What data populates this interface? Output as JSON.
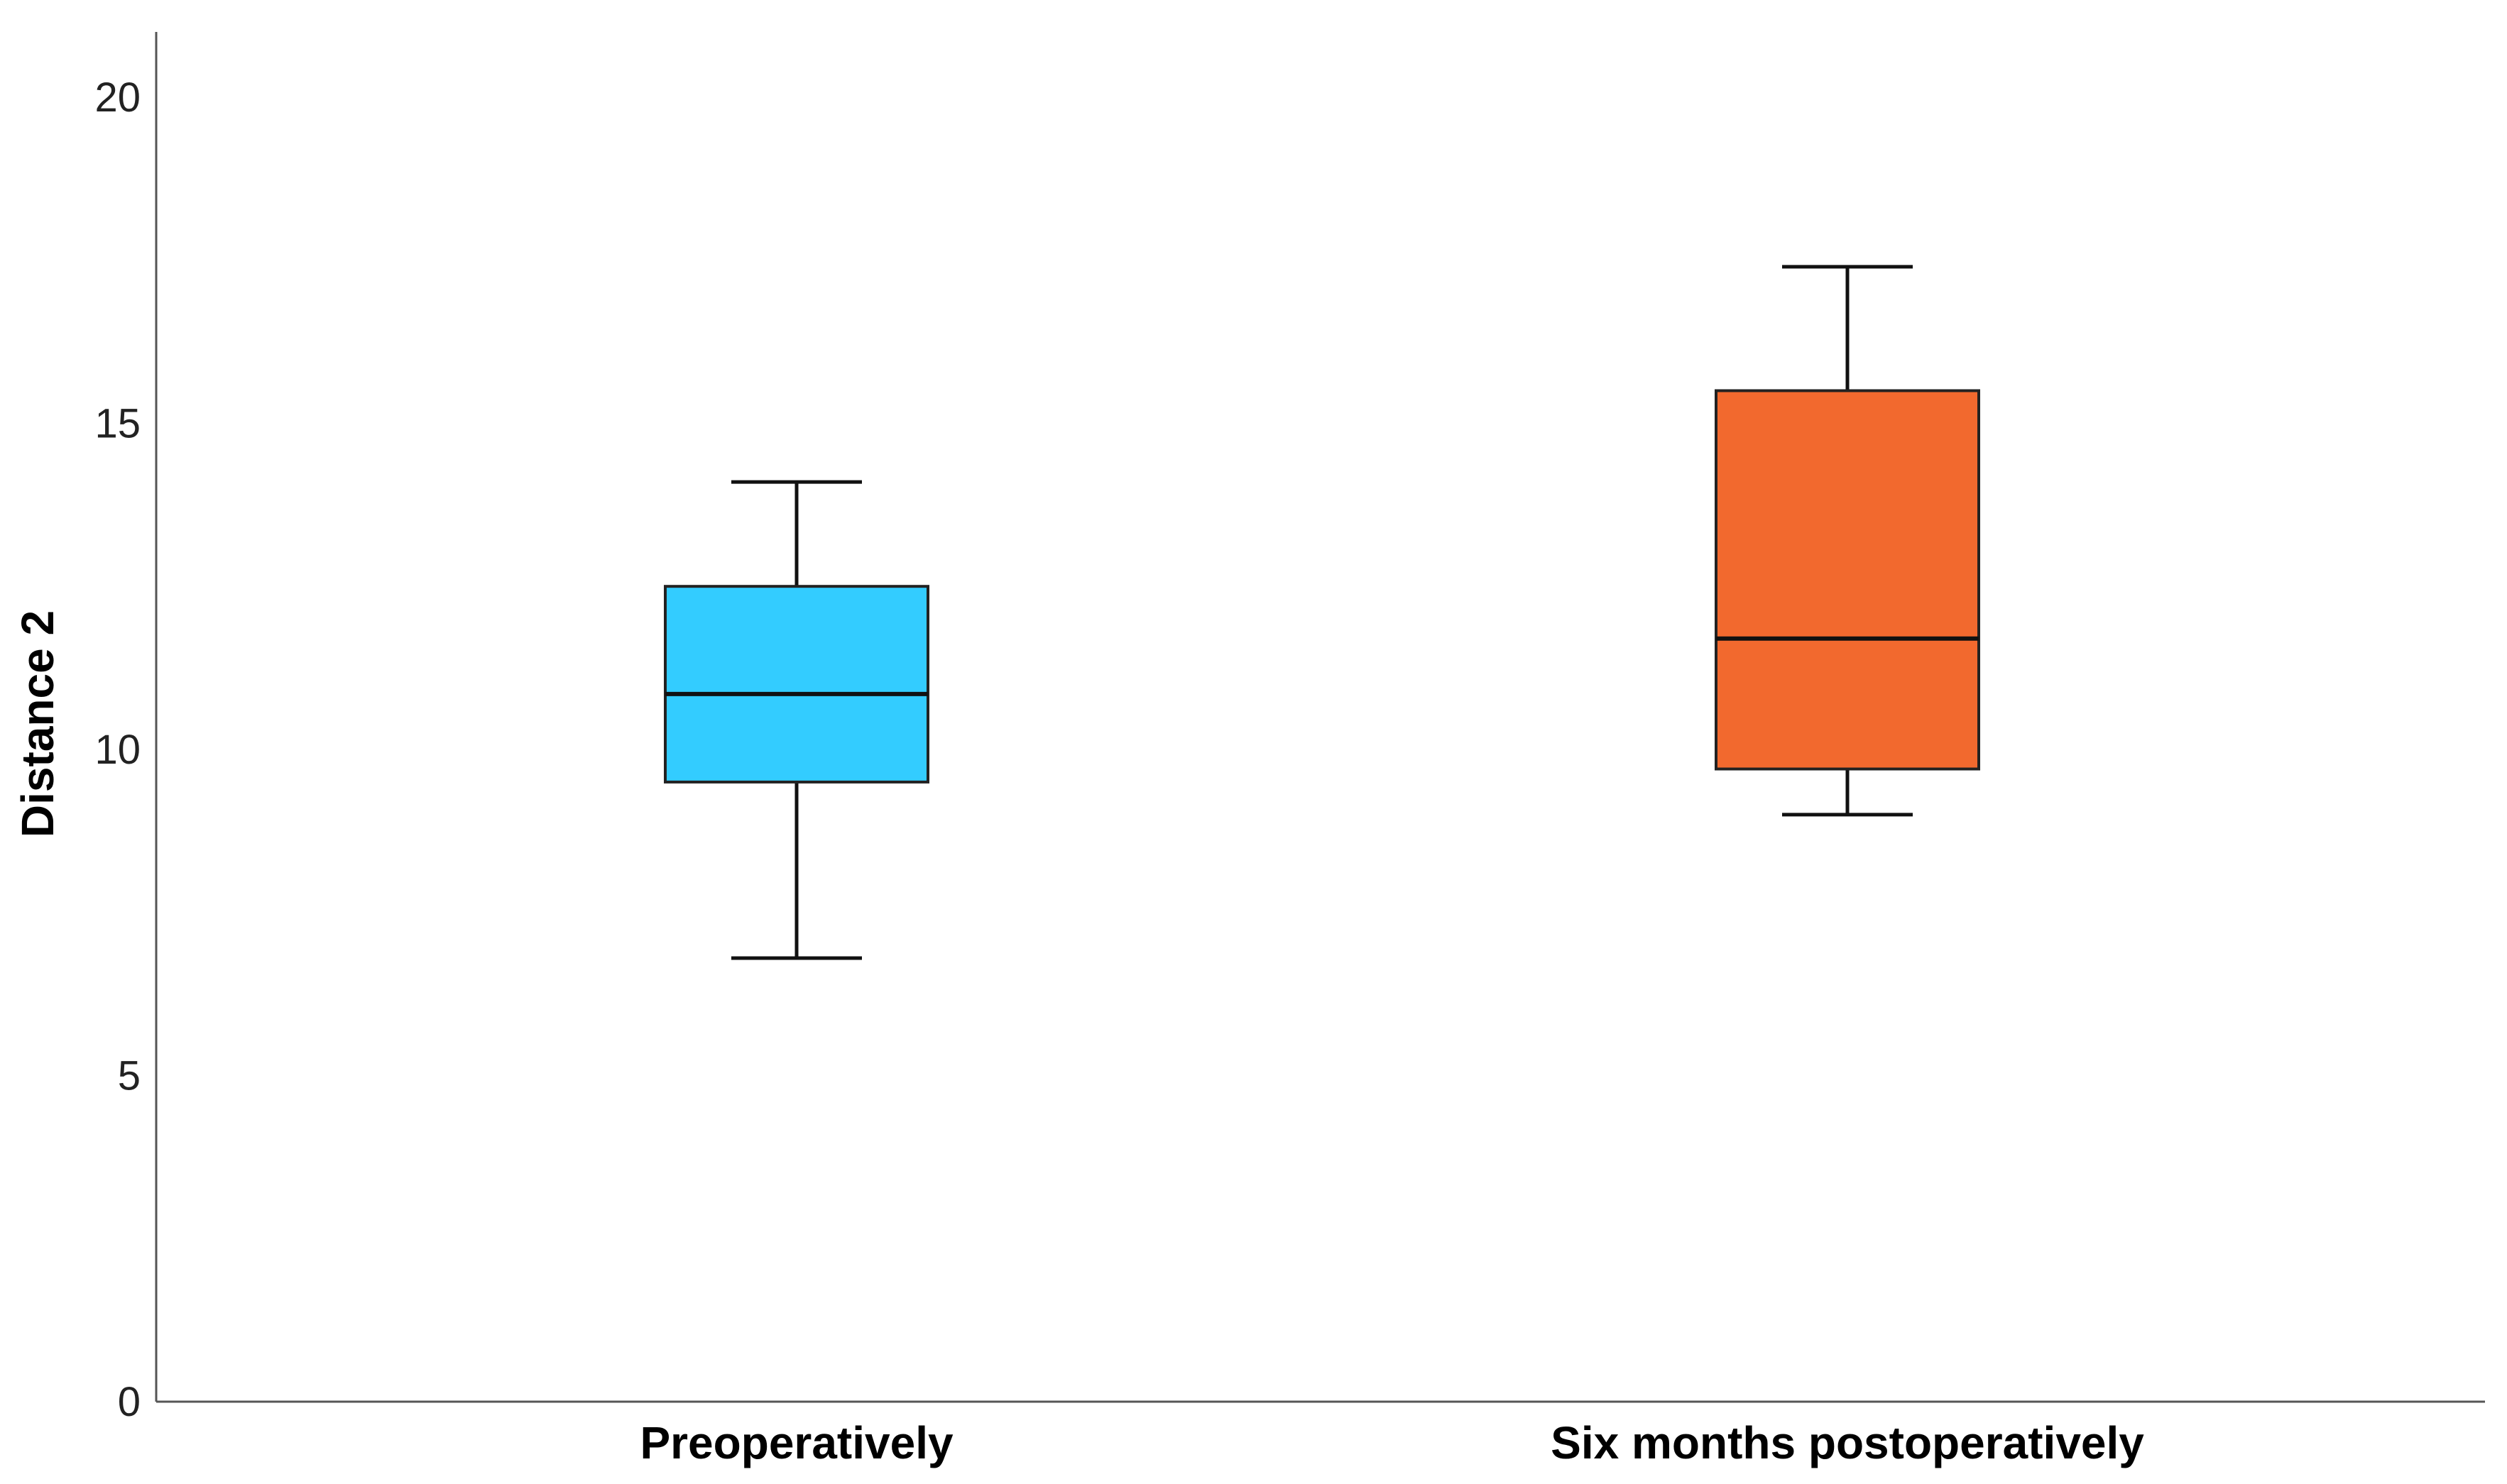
{
  "chart_data": {
    "type": "box",
    "ylabel": "Distance 2",
    "xlabel": "",
    "ylim": [
      0,
      21
    ],
    "yticks": [
      "0",
      "5",
      "10",
      "15",
      "20"
    ],
    "ytick_values": [
      0,
      5,
      10,
      15,
      20
    ],
    "grid": false,
    "categories": [
      "Preoperatively",
      "Six months postoperatively"
    ],
    "boxes": [
      {
        "category": "Preoperatively",
        "whisker_low": 6.8,
        "q1": 9.5,
        "median": 10.85,
        "q3": 12.5,
        "whisker_high": 14.1,
        "color": "#33CCFF"
      },
      {
        "category": "Six months postoperatively",
        "whisker_low": 9.0,
        "q1": 9.7,
        "median": 11.7,
        "q3": 15.5,
        "whisker_high": 17.4,
        "color": "#F2692E"
      }
    ]
  }
}
